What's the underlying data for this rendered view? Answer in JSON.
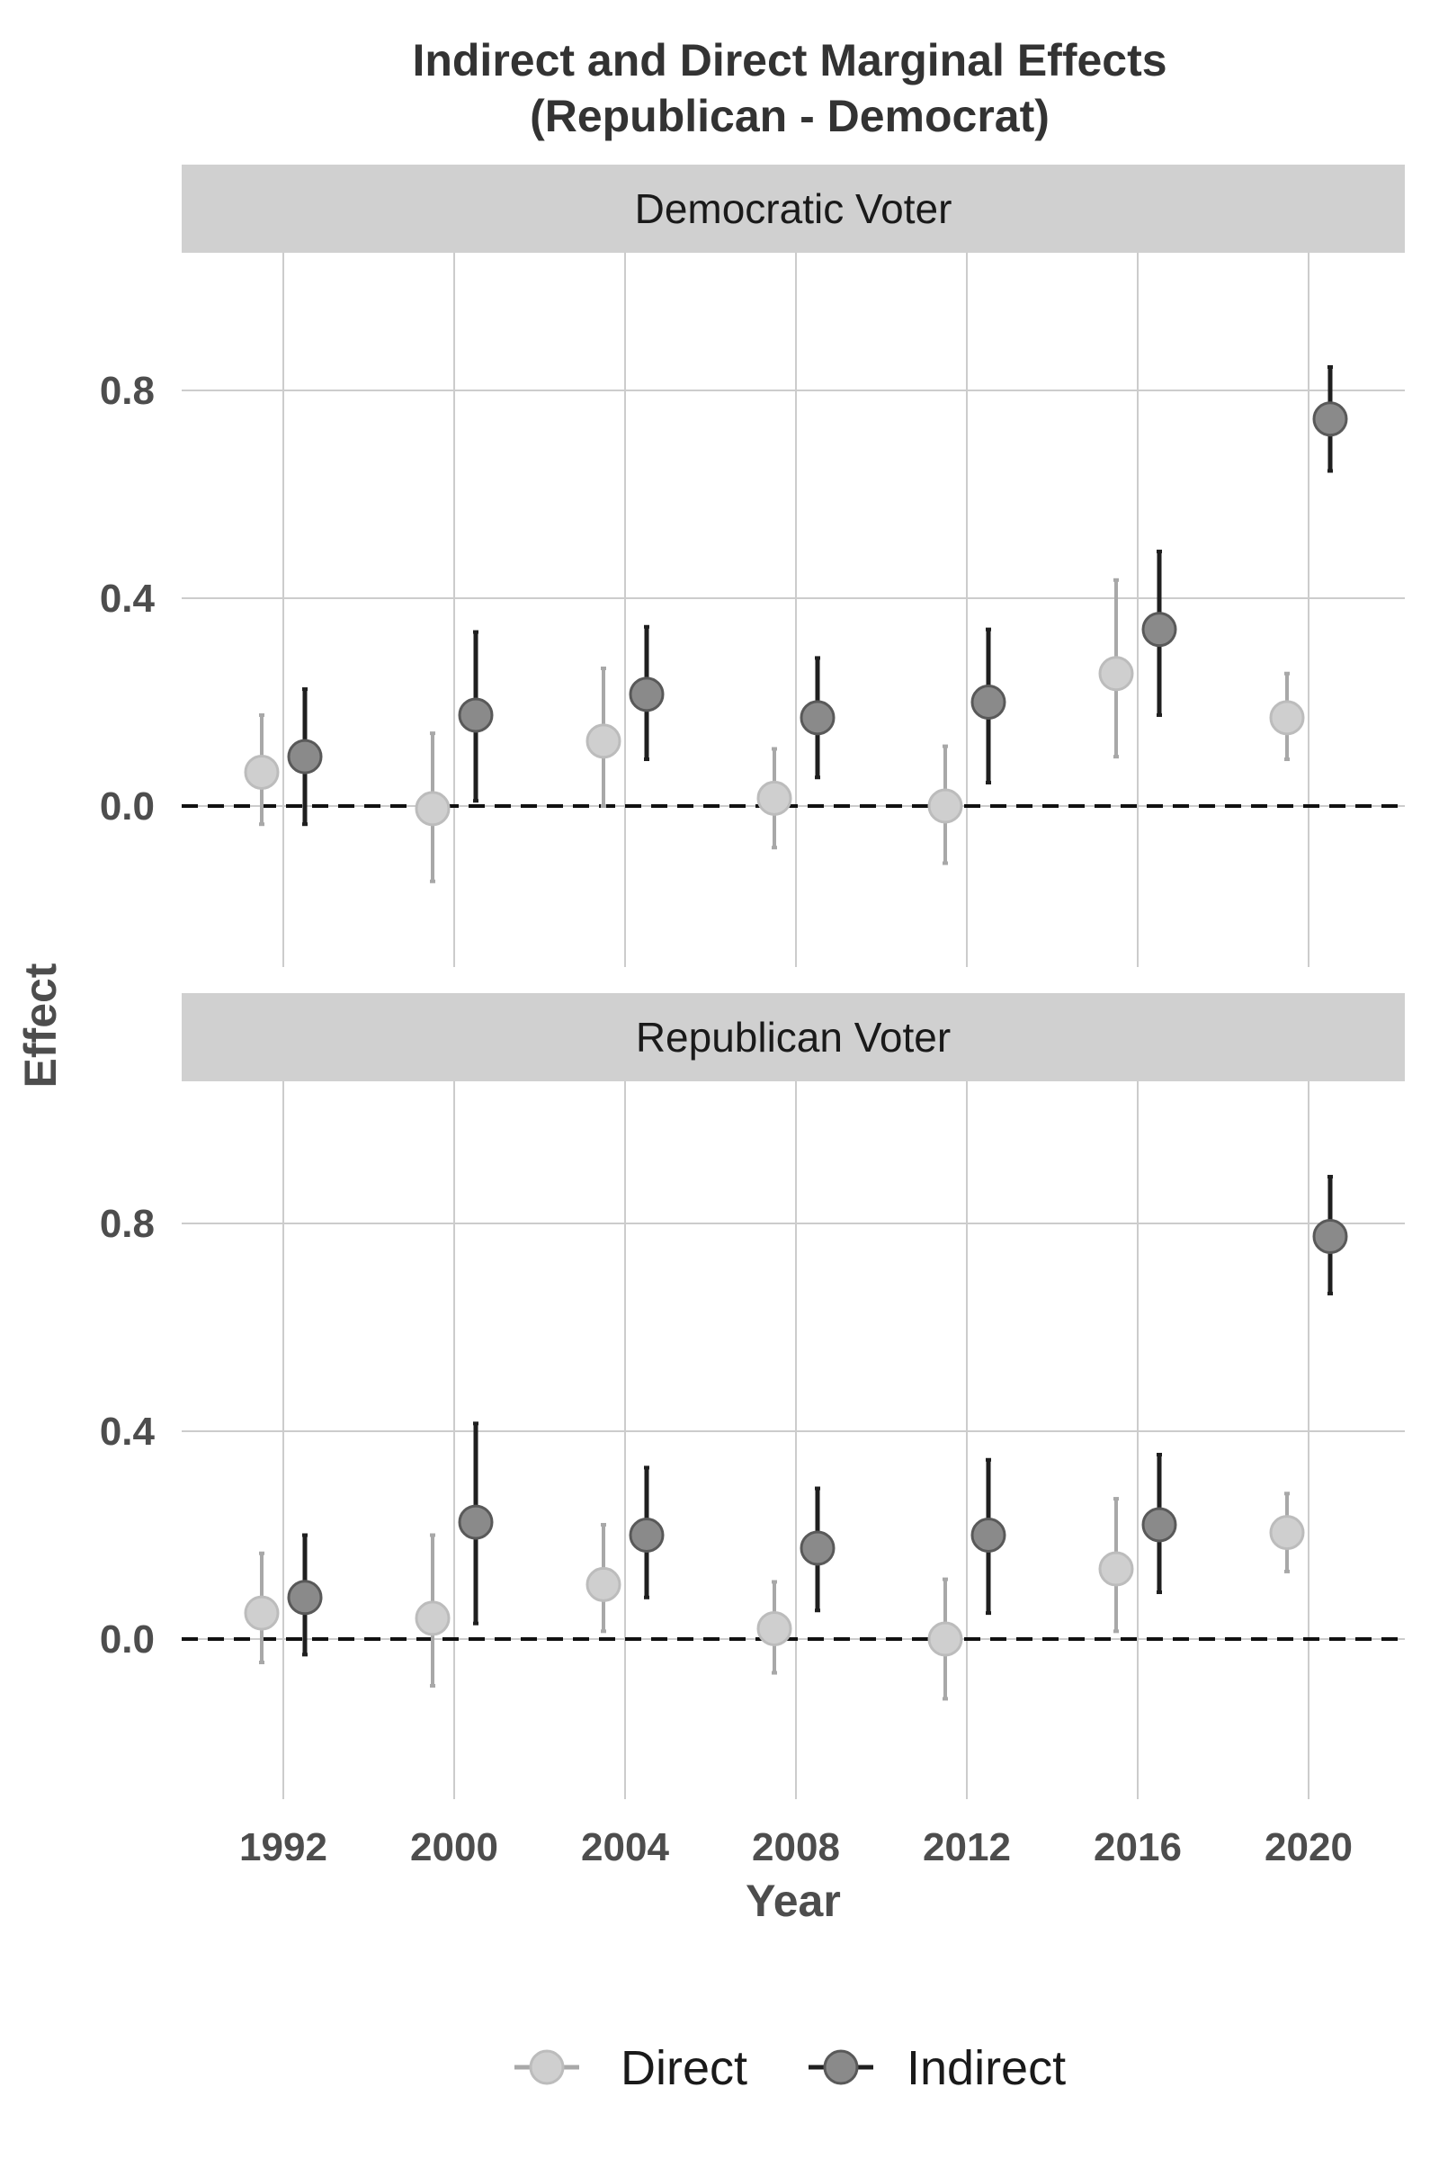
{
  "chart_data": {
    "type": "scatter",
    "title": "Indirect and Direct Marginal Effects",
    "subtitle": "(Republican - Democrat)",
    "xlabel": "Year",
    "ylabel": "Effect",
    "categories": [
      "1992",
      "2000",
      "2004",
      "2008",
      "2012",
      "2016",
      "2020"
    ],
    "ylim": [
      -0.3,
      1.06
    ],
    "yticks": [
      "0.0",
      "0.4",
      "0.8"
    ],
    "ytick_values": [
      0.0,
      0.4,
      0.8
    ],
    "reference_line": 0.0,
    "grid": true,
    "legend_position": "bottom",
    "legend": [
      "Direct",
      "Indirect"
    ],
    "series_colors": {
      "Direct": "#c8c8c8",
      "Indirect": "#707070"
    },
    "panels": [
      {
        "strip": "Democratic Voter",
        "series": [
          {
            "name": "Direct",
            "values": [
              0.065,
              -0.005,
              0.125,
              0.015,
              0.0,
              0.255,
              0.17
            ],
            "lower": [
              -0.035,
              -0.145,
              0.0,
              -0.08,
              -0.11,
              0.095,
              0.09
            ],
            "upper": [
              0.175,
              0.14,
              0.265,
              0.11,
              0.115,
              0.435,
              0.255
            ]
          },
          {
            "name": "Indirect",
            "values": [
              0.095,
              0.175,
              0.215,
              0.17,
              0.2,
              0.34,
              0.745
            ],
            "lower": [
              -0.035,
              0.01,
              0.09,
              0.055,
              0.045,
              0.175,
              0.645
            ],
            "upper": [
              0.225,
              0.335,
              0.345,
              0.285,
              0.34,
              0.49,
              0.845
            ]
          }
        ]
      },
      {
        "strip": "Republican Voter",
        "series": [
          {
            "name": "Direct",
            "values": [
              0.05,
              0.04,
              0.105,
              0.02,
              0.0,
              0.135,
              0.205
            ],
            "lower": [
              -0.045,
              -0.09,
              0.015,
              -0.065,
              -0.115,
              0.015,
              0.13
            ],
            "upper": [
              0.165,
              0.2,
              0.22,
              0.11,
              0.115,
              0.27,
              0.28
            ]
          },
          {
            "name": "Indirect",
            "values": [
              0.08,
              0.225,
              0.2,
              0.175,
              0.2,
              0.22,
              0.775
            ],
            "lower": [
              -0.03,
              0.03,
              0.08,
              0.055,
              0.05,
              0.09,
              0.665
            ],
            "upper": [
              0.2,
              0.415,
              0.33,
              0.29,
              0.345,
              0.355,
              0.89
            ]
          }
        ]
      }
    ]
  }
}
